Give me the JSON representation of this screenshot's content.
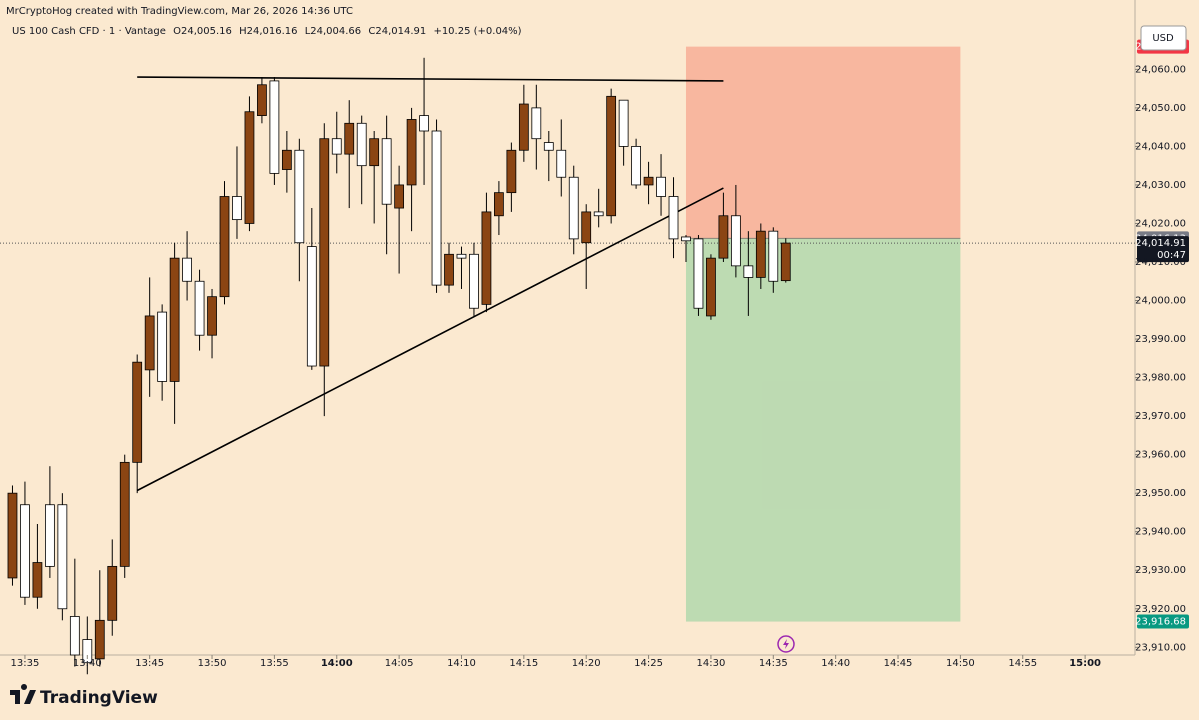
{
  "header": "MrCryptoHog created with TradingView.com, Mar 26, 2026 14:36 UTC",
  "legend": {
    "symbol": "US 100 Cash CFD · 1 · Vantage",
    "ohlc": [
      {
        "key": "O",
        "value": "24,005.16"
      },
      {
        "key": "H",
        "value": "24,016.16"
      },
      {
        "key": "L",
        "value": "24,004.66"
      },
      {
        "key": "C",
        "value": "24,014.91"
      }
    ],
    "change": "+10.25 (+0.04%)"
  },
  "currency": "USD",
  "watermark": "TradingView",
  "chart_data": {
    "type": "candlestick",
    "up_color": "#8b4513",
    "down_color": "#ffffff",
    "outline_color": "#000000",
    "x": [
      "13:34",
      "13:35",
      "13:36",
      "13:37",
      "13:38",
      "13:39",
      "13:40",
      "13:41",
      "13:42",
      "13:43",
      "13:44",
      "13:45",
      "13:46",
      "13:47",
      "13:48",
      "13:49",
      "13:50",
      "13:51",
      "13:52",
      "13:53",
      "13:54",
      "13:55",
      "13:56",
      "13:57",
      "13:58",
      "13:59",
      "14:00",
      "14:01",
      "14:02",
      "14:03",
      "14:04",
      "14:05",
      "14:06",
      "14:07",
      "14:08",
      "14:09",
      "14:10",
      "14:11",
      "14:12",
      "14:13",
      "14:14",
      "14:15",
      "14:16",
      "14:17",
      "14:18",
      "14:19",
      "14:20",
      "14:21",
      "14:22",
      "14:23",
      "14:24",
      "14:25",
      "14:26",
      "14:27",
      "14:28",
      "14:29",
      "14:30",
      "14:31",
      "14:32",
      "14:33",
      "14:34",
      "14:35",
      "14:36"
    ],
    "open": [
      23928,
      23947,
      23923,
      23947,
      23947,
      23918,
      23912,
      23907,
      23917,
      23931,
      23958,
      23982,
      23997,
      23979,
      24011,
      24005,
      23991,
      24001,
      24027,
      24020,
      24048,
      24057,
      24034,
      24039,
      24014,
      23983,
      24042,
      24038,
      24046,
      24035,
      24042,
      24024,
      24030,
      24048,
      24044,
      24004,
      24012,
      24012,
      23999,
      24022,
      24028,
      24039,
      24050,
      24041,
      24039,
      24032,
      24015,
      24023,
      24022,
      24052,
      24040,
      24030,
      24032,
      24027,
      24016.5,
      24016,
      23996,
      24011,
      24022,
      24009,
      24006,
      24018,
      24005.16
    ],
    "high": [
      23952,
      23953,
      23942,
      23957,
      23950,
      23933,
      23918,
      23930,
      23938,
      23960,
      23986,
      24006,
      23999,
      24015,
      24018,
      24008,
      24003,
      24031,
      24040,
      24053,
      24058,
      24058,
      24044,
      24042,
      24024,
      24046,
      24049,
      24052,
      24048,
      24044,
      24048,
      24035,
      24050,
      24063,
      24047,
      24015,
      24014,
      24015,
      24028,
      24031,
      24041,
      24056,
      24056,
      24044,
      24047,
      24035,
      24025,
      24029,
      24055,
      24052,
      24042,
      24036,
      24038,
      24032,
      24017,
      24017,
      24012,
      24028,
      24030,
      24018,
      24020,
      24019,
      24016.16
    ],
    "low": [
      23926,
      23921,
      23920,
      23928,
      23917,
      23905,
      23903,
      23905,
      23913,
      23928,
      23950,
      23975,
      23974,
      23968,
      24000,
      23987,
      23985,
      23999,
      24016,
      24018,
      24046,
      24030,
      24028,
      24005,
      23982,
      23970,
      24033,
      24024,
      24025,
      24020,
      24012,
      24007,
      24018,
      24030,
      24002,
      24002,
      24003,
      23996,
      23997,
      24017,
      24023,
      24036,
      24034,
      24031,
      24027,
      24012,
      24003,
      24019,
      24020,
      24035,
      24029,
      24025,
      24022,
      24011,
      24010,
      23996,
      23995,
      24010,
      24006,
      23996,
      24003,
      24002,
      24004.66
    ],
    "close": [
      23950,
      23923,
      23932,
      23931,
      23920,
      23908,
      23906,
      23917,
      23931,
      23958,
      23984,
      23996,
      23979,
      24011,
      24005,
      23991,
      24001,
      24027,
      24021,
      24049,
      24056,
      24033,
      24039,
      24015,
      23983,
      24042,
      24038,
      24046,
      24035,
      24042,
      24025,
      24030,
      24047,
      24044,
      24004,
      24012,
      24011,
      23998,
      24023,
      24028,
      24039,
      24051,
      24042,
      24039,
      24032,
      24016,
      24023,
      24022,
      24053,
      24040,
      24030,
      24032,
      24027,
      24016,
      24015.5,
      23998,
      24011,
      24022,
      24009,
      24006,
      24018,
      24005,
      24014.91
    ],
    "xlim": [
      "13:33",
      "15:04"
    ],
    "xticks": [
      "13:35",
      "13:40",
      "13:45",
      "13:50",
      "13:55",
      "14:00",
      "14:05",
      "14:10",
      "14:15",
      "14:20",
      "14:25",
      "14:30",
      "14:35",
      "14:40",
      "14:45",
      "14:50",
      "14:55",
      "15:00"
    ],
    "ylim": [
      23908,
      24078
    ],
    "yticks": [
      {
        "value": 23910,
        "label": "23,910.00"
      },
      {
        "value": 23920,
        "label": "23,920.00"
      },
      {
        "value": 23930,
        "label": "23,930.00"
      },
      {
        "value": 23940,
        "label": "23,940.00"
      },
      {
        "value": 23950,
        "label": "23,950.00"
      },
      {
        "value": 23960,
        "label": "23,960.00"
      },
      {
        "value": 23970,
        "label": "23,970.00"
      },
      {
        "value": 23980,
        "label": "23,980.00"
      },
      {
        "value": 23990,
        "label": "23,990.00"
      },
      {
        "value": 24000,
        "label": "24,000.00"
      },
      {
        "value": 24010,
        "label": "24,010.00"
      },
      {
        "value": 24020,
        "label": "24,020.00"
      },
      {
        "value": 24030,
        "label": "24,030.00"
      },
      {
        "value": 24040,
        "label": "24,040.00"
      },
      {
        "value": 24050,
        "label": "24,050.00"
      },
      {
        "value": 24060,
        "label": "24,060.00"
      }
    ],
    "grid": false,
    "trendlines": [
      {
        "x": [
          "13:44",
          "14:31"
        ],
        "y": [
          24058,
          24057
        ]
      },
      {
        "x": [
          "13:44",
          "14:31"
        ],
        "y": [
          23950.7,
          24029.2
        ]
      }
    ],
    "position": {
      "start": "14:28",
      "end": "14:50",
      "stop": 24065.9,
      "stop_label": "24,065.90",
      "stop_color": "#f7a58f",
      "entry": 24016.13,
      "entry_label": "24,016.13",
      "target": 23916.68,
      "target_label": "23,916.68",
      "target_color": "#a8d5a8"
    },
    "last_price": 24014.91,
    "last_price_label": "24,014.91",
    "countdown": "00:47"
  }
}
